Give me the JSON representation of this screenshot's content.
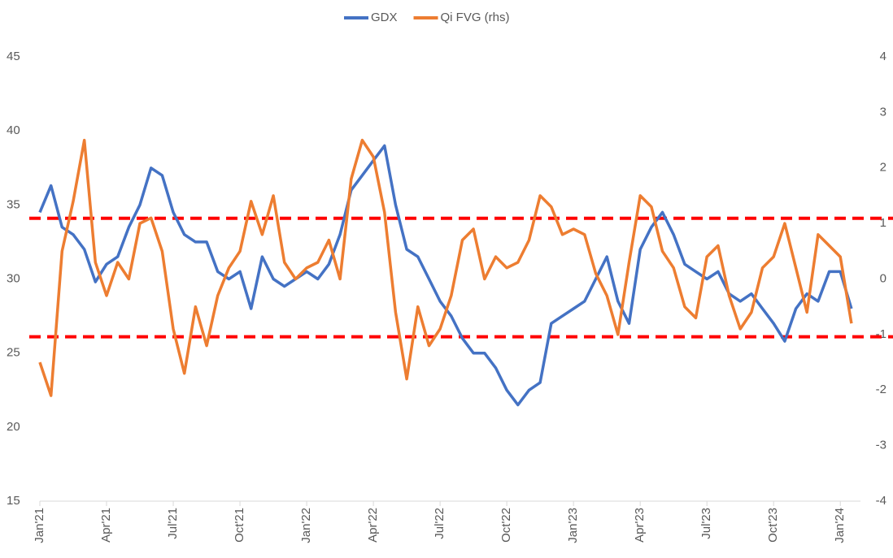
{
  "chart_data": {
    "type": "line",
    "categories": [
      "Jan'21",
      null,
      null,
      null,
      null,
      null,
      "Apr'21",
      null,
      null,
      null,
      null,
      null,
      "Jul'21",
      null,
      null,
      null,
      null,
      null,
      "Oct'21",
      null,
      null,
      null,
      null,
      null,
      "Jan'22",
      null,
      null,
      null,
      null,
      null,
      "Apr'22",
      null,
      null,
      null,
      null,
      null,
      "Jul'22",
      null,
      null,
      null,
      null,
      null,
      "Oct'22",
      null,
      null,
      null,
      null,
      null,
      "Jan'23",
      null,
      null,
      null,
      null,
      null,
      "Apr'23",
      null,
      null,
      null,
      null,
      null,
      "Jul'23",
      null,
      null,
      null,
      null,
      null,
      "Oct'23",
      null,
      null,
      null,
      null,
      null,
      "Jan'24",
      null
    ],
    "series": [
      {
        "name": "GDX",
        "color": "#4472c4",
        "values": [
          34.5,
          36.3,
          33.5,
          33,
          32,
          29.8,
          31,
          31.5,
          33.5,
          35,
          37.5,
          37,
          34.5,
          33,
          32.5,
          32.5,
          30.5,
          30,
          30.5,
          28,
          31.5,
          30,
          29.5,
          30,
          30.5,
          30,
          31,
          33,
          36,
          37,
          38,
          39,
          35,
          32,
          31.5,
          30,
          28.5,
          27.5,
          26,
          25,
          25,
          24,
          22.5,
          21.5,
          22.5,
          23,
          27,
          27.5,
          28,
          28.5,
          30,
          31.5,
          28.5,
          27,
          32,
          33.5,
          34.5,
          33,
          31,
          30.5,
          30,
          30.5,
          29,
          28.5,
          29,
          28,
          27,
          25.8,
          28,
          29,
          28.5,
          30.5,
          30.5,
          28
        ]
      },
      {
        "name": "Qi FVG (rhs)",
        "color": "#ed7d31",
        "axis": "y2",
        "values": [
          -1.5,
          -2.1,
          0.5,
          1.4,
          2.5,
          0.3,
          -0.3,
          0.3,
          0,
          1,
          1.1,
          0.5,
          -0.9,
          -1.7,
          -0.5,
          -1.2,
          -0.3,
          0.2,
          0.5,
          1.4,
          0.8,
          1.5,
          0.3,
          0,
          0.2,
          0.3,
          0.7,
          0,
          1.8,
          2.5,
          2.2,
          1.2,
          -0.6,
          -1.8,
          -0.5,
          -1.2,
          -0.9,
          -0.3,
          0.7,
          0.9,
          0,
          0.4,
          0.2,
          0.3,
          0.7,
          1.5,
          1.3,
          0.8,
          0.9,
          0.8,
          0.1,
          -0.3,
          -1,
          0.3,
          1.5,
          1.3,
          0.5,
          0.2,
          -0.5,
          -0.7,
          0.4,
          0.6,
          -0.3,
          -0.9,
          -0.6,
          0.2,
          0.4,
          1,
          0.2,
          -0.6,
          0.8,
          0.6,
          0.4,
          -0.8
        ]
      }
    ],
    "ylim": [
      15,
      45
    ],
    "yticks": [
      15,
      20,
      25,
      30,
      35,
      40,
      45
    ],
    "y2lim": [
      -4,
      4
    ],
    "y2ticks": [
      -4,
      -3,
      -2,
      -1,
      0,
      1,
      2,
      3,
      4
    ],
    "reference_lines": [
      34.1,
      26.1
    ],
    "reference_line_color": "#ff0000",
    "legend": "top",
    "grid": false
  }
}
